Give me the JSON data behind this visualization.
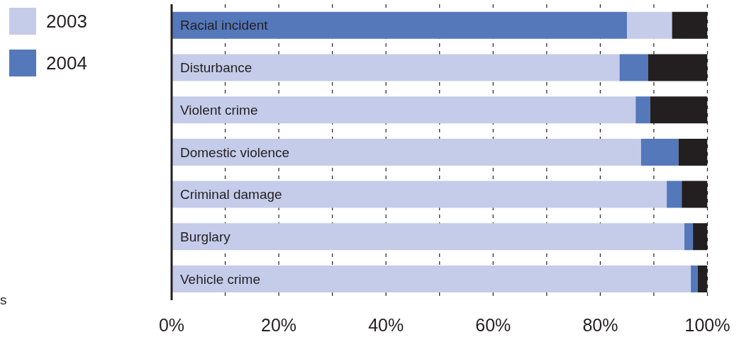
{
  "chart_data": {
    "type": "bar",
    "orientation": "horizontal",
    "stacked": true,
    "categories": [
      "Racial incident",
      "Disturbance",
      "Violent crime",
      "Domestic violence",
      "Criminal damage",
      "Burglary",
      "Vehicle crime"
    ],
    "series": [
      {
        "name": "2003",
        "color": "#c5cce9",
        "colors": [
          "#5578bb",
          "#c5cce9",
          "#c5cce9",
          "#c5cce9",
          "#c5cce9",
          "#c5cce9",
          "#c5cce9"
        ],
        "values": [
          85.0,
          83.6,
          86.6,
          87.6,
          92.4,
          95.7,
          96.9
        ]
      },
      {
        "name": "2004",
        "color": "#5578bb",
        "colors": [
          "#c5cce9",
          "#5578bb",
          "#5578bb",
          "#5578bb",
          "#5578bb",
          "#5578bb",
          "#5578bb"
        ],
        "values": [
          8.4,
          5.3,
          2.7,
          7.0,
          2.8,
          1.6,
          1.3
        ]
      },
      {
        "color": "#231f20",
        "values": [
          6.6,
          11.1,
          10.7,
          5.4,
          4.8,
          2.7,
          1.8
        ]
      }
    ],
    "xlim": [
      0,
      100
    ],
    "xticks": [
      {
        "value": 0,
        "label": "0%"
      },
      {
        "value": 10,
        "label": null
      },
      {
        "value": 20,
        "label": "20%"
      },
      {
        "value": 30,
        "label": null
      },
      {
        "value": 40,
        "label": "40%"
      },
      {
        "value": 50,
        "label": null
      },
      {
        "value": 60,
        "label": "60%"
      },
      {
        "value": 70,
        "label": null
      },
      {
        "value": 80,
        "label": "80%"
      },
      {
        "value": 90,
        "label": null
      },
      {
        "value": 100,
        "label": "100%"
      }
    ],
    "grid": "x",
    "legend": "top left",
    "annotations": [
      "s"
    ]
  }
}
